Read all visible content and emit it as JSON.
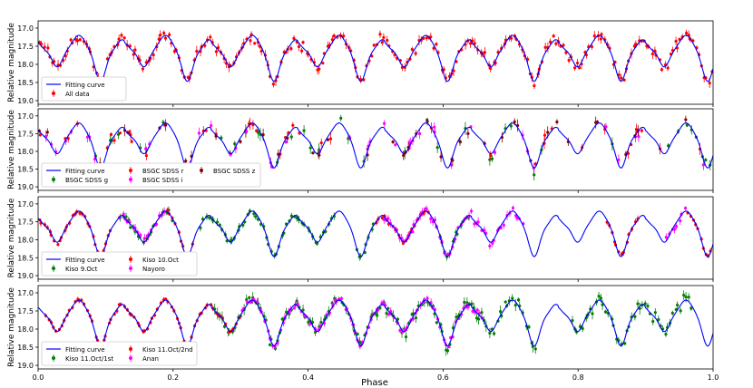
{
  "figure": {
    "xlabel": "Phase",
    "xticks": [
      "0.0",
      "0.2",
      "0.4",
      "0.6",
      "0.8",
      "1.0"
    ]
  },
  "chart_data": [
    {
      "type": "scatter",
      "panel": 1,
      "ylabel": "Relative magnitude",
      "yticks": [
        "17.0",
        "17.5",
        "18.0",
        "18.5",
        "19.0"
      ],
      "ylim": [
        19.1,
        16.8
      ],
      "xlim": [
        0.0,
        1.0
      ],
      "legend_position": "lower-left",
      "legend_columns": 1,
      "series": [
        {
          "name": "Fitting curve",
          "kind": "line",
          "color": "#0000ff"
        },
        {
          "name": "All data",
          "kind": "errorbar",
          "color": "#ff0000",
          "segments": [
            [
              0.0,
              1.0
            ]
          ],
          "scatter": 0.12
        }
      ]
    },
    {
      "type": "scatter",
      "panel": 2,
      "ylabel": "Relative magnitude",
      "yticks": [
        "17.0",
        "17.5",
        "18.0",
        "18.5",
        "19.0"
      ],
      "ylim": [
        19.1,
        16.8
      ],
      "xlim": [
        0.0,
        1.0
      ],
      "legend_position": "lower-left",
      "legend_columns": 3,
      "series": [
        {
          "name": "Fitting curve",
          "kind": "line",
          "color": "#0000ff"
        },
        {
          "name": "BSGC SDSS g",
          "kind": "errorbar",
          "color": "#008000",
          "sparse": 44,
          "scatter": 0.18
        },
        {
          "name": "BSGC SDSS r",
          "kind": "errorbar",
          "color": "#ff0000",
          "sparse": 44,
          "scatter": 0.15
        },
        {
          "name": "BSGC SDSS i",
          "kind": "errorbar",
          "color": "#ff00ff",
          "sparse": 44,
          "scatter": 0.15
        },
        {
          "name": "BSGC SDSS z",
          "kind": "errorbar",
          "color": "#8b0000",
          "sparse": 44,
          "scatter": 0.15
        }
      ]
    },
    {
      "type": "scatter",
      "panel": 3,
      "ylabel": "Relative magnitude",
      "yticks": [
        "17.0",
        "17.5",
        "18.0",
        "18.5",
        "19.0"
      ],
      "ylim": [
        19.1,
        16.8
      ],
      "xlim": [
        0.0,
        1.0
      ],
      "legend_position": "lower-left",
      "legend_columns": 2,
      "series": [
        {
          "name": "Fitting curve",
          "kind": "line",
          "color": "#0000ff"
        },
        {
          "name": "Kiso 9.Oct",
          "kind": "errorbar",
          "color": "#008000",
          "segments": [
            [
              0.12,
              0.2
            ],
            [
              0.24,
              0.44
            ],
            [
              0.47,
              0.5
            ],
            [
              0.59,
              0.64
            ]
          ],
          "scatter": 0.08
        },
        {
          "name": "Kiso 10.Oct",
          "kind": "errorbar",
          "color": "#ff0000",
          "segments": [
            [
              0.0,
              0.11
            ],
            [
              0.19,
              0.23
            ],
            [
              0.5,
              0.58
            ],
            [
              0.84,
              0.89
            ],
            [
              0.96,
              1.0
            ]
          ],
          "scatter": 0.06
        },
        {
          "name": "Nayoro",
          "kind": "errorbar",
          "color": "#ff00ff",
          "segments": [
            [
              0.12,
              0.19
            ],
            [
              0.51,
              0.72
            ],
            [
              0.93,
              0.96
            ]
          ],
          "scatter": 0.1
        }
      ]
    },
    {
      "type": "scatter",
      "panel": 4,
      "ylabel": "Relative magnitude",
      "yticks": [
        "17.0",
        "17.5",
        "18.0",
        "18.5",
        "19.0"
      ],
      "ylim": [
        19.1,
        16.8
      ],
      "xlim": [
        0.0,
        1.0
      ],
      "legend_position": "lower-left",
      "legend_columns": 2,
      "series": [
        {
          "name": "Fitting curve",
          "kind": "line",
          "color": "#0000ff"
        },
        {
          "name": "Kiso 11.Oct/1st",
          "kind": "errorbar",
          "color": "#008000",
          "segments": [
            [
              0.26,
              0.74
            ],
            [
              0.79,
              0.97
            ]
          ],
          "scatter": 0.14
        },
        {
          "name": "Kiso 11.Oct/2nd",
          "kind": "errorbar",
          "color": "#ff0000",
          "segments": [
            [
              0.01,
              0.3
            ]
          ],
          "scatter": 0.04
        },
        {
          "name": "Anan",
          "kind": "errorbar",
          "color": "#ff00ff",
          "segments": [
            [
              0.3,
              0.66
            ]
          ],
          "scatter": 0.08
        }
      ]
    }
  ]
}
